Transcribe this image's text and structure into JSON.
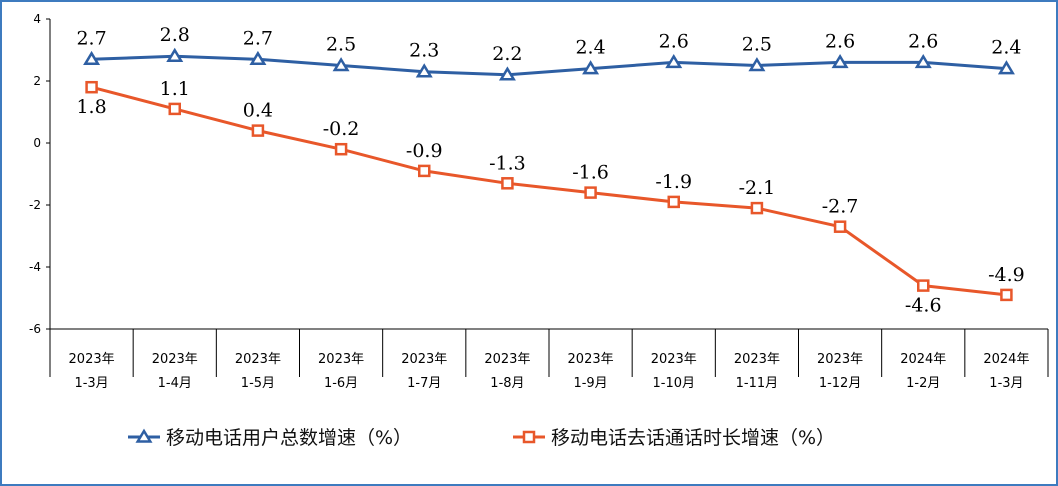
{
  "chart_data": {
    "type": "line",
    "categories": [
      [
        "2023年",
        "1-3月"
      ],
      [
        "2023年",
        "1-4月"
      ],
      [
        "2023年",
        "1-5月"
      ],
      [
        "2023年",
        "1-6月"
      ],
      [
        "2023年",
        "1-7月"
      ],
      [
        "2023年",
        "1-8月"
      ],
      [
        "2023年",
        "1-9月"
      ],
      [
        "2023年",
        "1-10月"
      ],
      [
        "2023年",
        "1-11月"
      ],
      [
        "2023年",
        "1-12月"
      ],
      [
        "2024年",
        "1-2月"
      ],
      [
        "2024年",
        "1-3月"
      ]
    ],
    "series": [
      {
        "name": "移动电话用户总数增速（%）",
        "values": [
          2.7,
          2.8,
          2.7,
          2.5,
          2.3,
          2.2,
          2.4,
          2.6,
          2.5,
          2.6,
          2.6,
          2.4
        ],
        "labels": [
          "2.7",
          "2.8",
          "2.7",
          "2.5",
          "2.3",
          "2.2",
          "2.4",
          "2.6",
          "2.5",
          "2.6",
          "2.6",
          "2.4"
        ],
        "color": "#2e5fa3",
        "marker": "triangle"
      },
      {
        "name": "移动电话去话通话时长增速（%）",
        "values": [
          1.8,
          1.1,
          0.4,
          -0.2,
          -0.9,
          -1.3,
          -1.6,
          -1.9,
          -2.1,
          -2.7,
          -4.6,
          -4.9
        ],
        "labels": [
          "1.8",
          "1.1",
          "0.4",
          "-0.2",
          "-0.9",
          "-1.3",
          "-1.6",
          "-1.9",
          "-2.1",
          "-2.7",
          "-4.6",
          "-4.9"
        ],
        "color": "#e8572a",
        "marker": "square"
      }
    ],
    "yticks": [
      "4",
      "2",
      "0",
      "-2",
      "-4",
      "-6"
    ],
    "ylim": [
      -6,
      4
    ],
    "grid": false,
    "legend": "bottom"
  },
  "colors": {
    "frame": "#3d7bbf"
  }
}
